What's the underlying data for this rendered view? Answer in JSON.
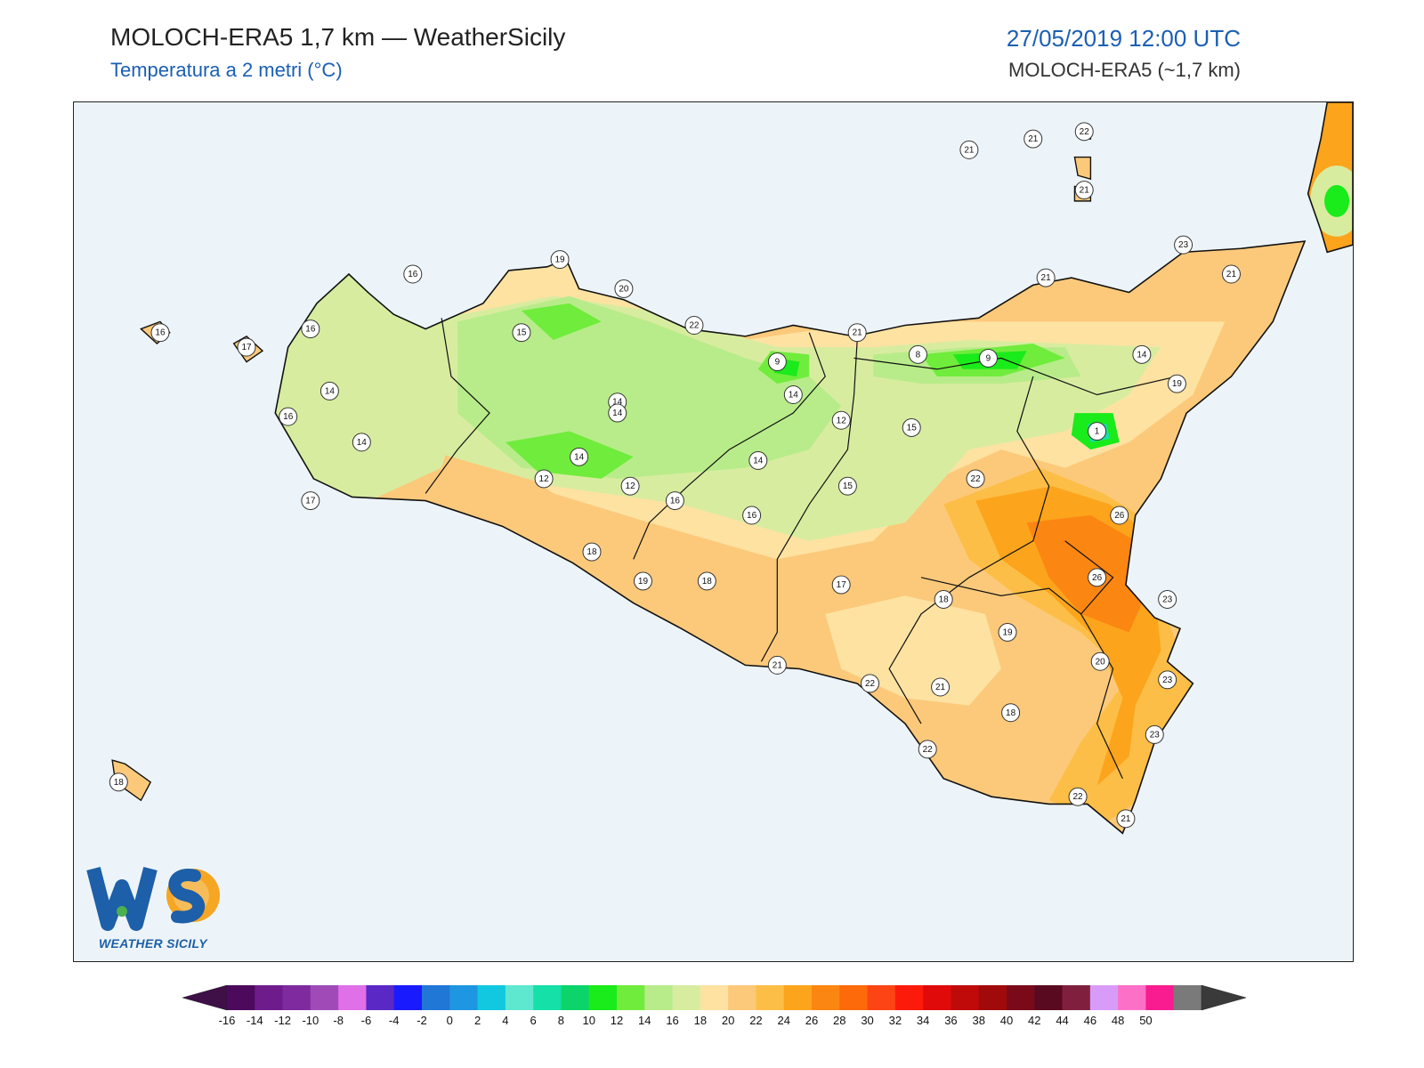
{
  "header": {
    "title": "MOLOCH-ERA5 1,7 km — WeatherSicily",
    "subtitle": "Temperatura a 2 metri (°C)",
    "datetime": "27/05/2019 12:00 UTC",
    "model": "MOLOCH-ERA5 (~1,7 km)"
  },
  "logo": {
    "text": "WEATHER SICILY",
    "mark": "WS"
  },
  "colors": {
    "sea": "#edf4f9",
    "coast": "#111111",
    "colorbar": [
      "#3f0f48",
      "#4d0a5c",
      "#6e1c8c",
      "#7f2a9e",
      "#a04ab8",
      "#e070e8",
      "#5a28c4",
      "#1a1aff",
      "#2177d6",
      "#1f96e2",
      "#12c8e0",
      "#5fe8d0",
      "#15e0a8",
      "#0cd46a",
      "#1aeb1a",
      "#70ec3c",
      "#b8ec8a",
      "#d8eca0",
      "#fde2a2",
      "#fcc97a",
      "#fcbe46",
      "#fca41c",
      "#fc8612",
      "#fc6a0a",
      "#fc4414",
      "#fc1a0a",
      "#e00a0a",
      "#c00a0a",
      "#a00a0a",
      "#7a0a1a",
      "#5a0a20",
      "#80203e",
      "#d89cf8",
      "#fc70c8",
      "#f81c90",
      "#7a7a7a",
      "#3a3a3a"
    ]
  },
  "colorbar": {
    "ticks": [
      "-16",
      "-14",
      "-12",
      "-10",
      "-8",
      "-6",
      "-4",
      "-2",
      "0",
      "2",
      "4",
      "6",
      "8",
      "10",
      "12",
      "14",
      "16",
      "18",
      "20",
      "22",
      "24",
      "26",
      "28",
      "30",
      "32",
      "34",
      "36",
      "38",
      "40",
      "42",
      "44",
      "46",
      "48",
      "50"
    ]
  },
  "stations": [
    {
      "v": "16",
      "lon": 12.07,
      "lat": 38.02
    },
    {
      "v": "17",
      "lon": 12.34,
      "lat": 37.98
    },
    {
      "v": "16",
      "lon": 12.54,
      "lat": 38.03
    },
    {
      "v": "16",
      "lon": 12.86,
      "lat": 38.18
    },
    {
      "v": "15",
      "lon": 13.2,
      "lat": 38.02
    },
    {
      "v": "19",
      "lon": 13.32,
      "lat": 38.22
    },
    {
      "v": "20",
      "lon": 13.52,
      "lat": 38.14
    },
    {
      "v": "22",
      "lon": 13.74,
      "lat": 38.04
    },
    {
      "v": "14",
      "lon": 12.6,
      "lat": 37.86
    },
    {
      "v": "16",
      "lon": 12.47,
      "lat": 37.79
    },
    {
      "v": "14",
      "lon": 12.7,
      "lat": 37.72
    },
    {
      "v": "17",
      "lon": 12.54,
      "lat": 37.56
    },
    {
      "v": "14",
      "lon": 13.5,
      "lat": 37.83
    },
    {
      "v": "12",
      "lon": 13.27,
      "lat": 37.62
    },
    {
      "v": "12",
      "lon": 13.54,
      "lat": 37.6
    },
    {
      "v": "14",
      "lon": 13.38,
      "lat": 37.68
    },
    {
      "v": "14",
      "lon": 13.5,
      "lat": 37.8
    },
    {
      "v": "18",
      "lon": 13.42,
      "lat": 37.42
    },
    {
      "v": "19",
      "lon": 13.58,
      "lat": 37.34
    },
    {
      "v": "18",
      "lon": 13.78,
      "lat": 37.34
    },
    {
      "v": "16",
      "lon": 13.68,
      "lat": 37.56
    },
    {
      "v": "16",
      "lon": 13.92,
      "lat": 37.52
    },
    {
      "v": "14",
      "lon": 14.05,
      "lat": 37.85
    },
    {
      "v": "9",
      "lon": 14.0,
      "lat": 37.94
    },
    {
      "v": "12",
      "lon": 14.2,
      "lat": 37.78
    },
    {
      "v": "14",
      "lon": 13.94,
      "lat": 37.67
    },
    {
      "v": "21",
      "lon": 14.25,
      "lat": 38.02
    },
    {
      "v": "8",
      "lon": 14.44,
      "lat": 37.96
    },
    {
      "v": "9",
      "lon": 14.66,
      "lat": 37.95
    },
    {
      "v": "15",
      "lon": 14.42,
      "lat": 37.76
    },
    {
      "v": "15",
      "lon": 14.22,
      "lat": 37.6
    },
    {
      "v": "17",
      "lon": 14.2,
      "lat": 37.33
    },
    {
      "v": "22",
      "lon": 14.62,
      "lat": 37.62
    },
    {
      "v": "1",
      "lon": 15.0,
      "lat": 37.75
    },
    {
      "v": "14",
      "lon": 15.14,
      "lat": 37.96
    },
    {
      "v": "21",
      "lon": 14.84,
      "lat": 38.17
    },
    {
      "v": "23",
      "lon": 15.27,
      "lat": 38.26
    },
    {
      "v": "21",
      "lon": 15.42,
      "lat": 38.18
    },
    {
      "v": "19",
      "lon": 15.25,
      "lat": 37.88
    },
    {
      "v": "26",
      "lon": 15.07,
      "lat": 37.52
    },
    {
      "v": "26",
      "lon": 15.0,
      "lat": 37.35
    },
    {
      "v": "23",
      "lon": 15.22,
      "lat": 37.29
    },
    {
      "v": "18",
      "lon": 14.52,
      "lat": 37.29
    },
    {
      "v": "19",
      "lon": 14.72,
      "lat": 37.2
    },
    {
      "v": "20",
      "lon": 15.01,
      "lat": 37.12
    },
    {
      "v": "23",
      "lon": 15.22,
      "lat": 37.07
    },
    {
      "v": "23",
      "lon": 15.18,
      "lat": 36.92
    },
    {
      "v": "18",
      "lon": 14.73,
      "lat": 36.98
    },
    {
      "v": "21",
      "lon": 14.0,
      "lat": 37.11
    },
    {
      "v": "22",
      "lon": 14.29,
      "lat": 37.06
    },
    {
      "v": "21",
      "lon": 14.51,
      "lat": 37.05
    },
    {
      "v": "22",
      "lon": 14.47,
      "lat": 36.88
    },
    {
      "v": "22",
      "lon": 14.94,
      "lat": 36.75
    },
    {
      "v": "21",
      "lon": 15.09,
      "lat": 36.69
    },
    {
      "v": "21",
      "lon": 14.8,
      "lat": 38.55
    },
    {
      "v": "22",
      "lon": 14.96,
      "lat": 38.57
    },
    {
      "v": "21",
      "lon": 14.6,
      "lat": 38.52
    },
    {
      "v": "21",
      "lon": 14.96,
      "lat": 38.41
    },
    {
      "v": "18",
      "lon": 11.94,
      "lat": 36.79
    }
  ],
  "regions": [
    {
      "level": 20,
      "pts": [
        [
          13.5,
          38.13
        ],
        [
          14.05,
          38.02
        ],
        [
          14.3,
          38.02
        ],
        [
          14.65,
          38.06
        ],
        [
          15.1,
          38.14
        ],
        [
          15.64,
          38.22
        ],
        [
          15.56,
          38.03
        ],
        [
          15.28,
          37.82
        ],
        [
          15.19,
          37.45
        ],
        [
          15.21,
          37.2
        ],
        [
          15.3,
          37.06
        ],
        [
          15.15,
          36.75
        ],
        [
          15.03,
          36.66
        ],
        [
          14.7,
          36.72
        ],
        [
          14.35,
          36.99
        ],
        [
          14.0,
          37.07
        ],
        [
          13.6,
          37.26
        ],
        [
          13.75,
          37.45
        ],
        [
          14.1,
          37.5
        ],
        [
          14.3,
          37.65
        ],
        [
          14.4,
          37.72
        ],
        [
          14.7,
          37.85
        ],
        [
          14.6,
          38.0
        ],
        [
          14.2,
          38.0
        ],
        [
          13.8,
          37.95
        ],
        [
          13.6,
          38.02
        ]
      ],
      "c": "#fcc97a"
    },
    {
      "level": 22,
      "pts": [
        [
          14.52,
          37.55
        ],
        [
          14.82,
          37.65
        ],
        [
          15.02,
          37.58
        ],
        [
          15.17,
          37.5
        ],
        [
          15.19,
          37.3
        ],
        [
          15.3,
          37.06
        ],
        [
          15.16,
          36.76
        ],
        [
          15.03,
          36.68
        ],
        [
          14.85,
          36.74
        ],
        [
          14.95,
          36.9
        ],
        [
          15.1,
          37.08
        ],
        [
          14.95,
          37.2
        ],
        [
          14.75,
          37.3
        ],
        [
          14.6,
          37.4
        ]
      ],
      "c": "#fcbe46"
    },
    {
      "level": 24,
      "pts": [
        [
          14.62,
          37.56
        ],
        [
          14.86,
          37.6
        ],
        [
          15.04,
          37.55
        ],
        [
          15.16,
          37.47
        ],
        [
          15.18,
          37.32
        ],
        [
          15.2,
          37.15
        ],
        [
          15.12,
          37.0
        ],
        [
          15.1,
          36.86
        ],
        [
          15.0,
          36.78
        ],
        [
          15.08,
          37.02
        ],
        [
          15.0,
          37.18
        ],
        [
          14.86,
          37.3
        ],
        [
          14.7,
          37.4
        ]
      ],
      "c": "#fca41c"
    },
    {
      "level": 26,
      "pts": [
        [
          14.78,
          37.5
        ],
        [
          14.98,
          37.52
        ],
        [
          15.12,
          37.45
        ],
        [
          15.15,
          37.3
        ],
        [
          15.1,
          37.2
        ],
        [
          14.95,
          37.25
        ],
        [
          14.85,
          37.35
        ]
      ],
      "c": "#fc8612"
    },
    {
      "level": 18,
      "pts": [
        [
          14.15,
          37.25
        ],
        [
          14.4,
          37.3
        ],
        [
          14.65,
          37.25
        ],
        [
          14.7,
          37.1
        ],
        [
          14.6,
          37.0
        ],
        [
          14.4,
          37.02
        ],
        [
          14.2,
          37.1
        ]
      ],
      "c": "#fde2a2"
    },
    {
      "level": 18,
      "pts": [
        [
          12.9,
          38.12
        ],
        [
          13.2,
          38.2
        ],
        [
          13.5,
          38.22
        ],
        [
          13.9,
          38.0
        ],
        [
          14.3,
          38.05
        ],
        [
          14.9,
          38.05
        ],
        [
          15.4,
          38.05
        ],
        [
          15.3,
          37.85
        ],
        [
          15.1,
          37.72
        ],
        [
          14.9,
          37.65
        ],
        [
          14.7,
          37.7
        ],
        [
          14.5,
          37.62
        ],
        [
          14.3,
          37.45
        ],
        [
          14.0,
          37.4
        ],
        [
          13.6,
          37.5
        ],
        [
          13.3,
          37.58
        ],
        [
          13.1,
          37.7
        ],
        [
          13.0,
          37.85
        ]
      ],
      "c": "#fde2a2"
    },
    {
      "level": 16,
      "pts": [
        [
          12.43,
          38.02
        ],
        [
          12.5,
          38.15
        ],
        [
          12.66,
          38.2
        ],
        [
          12.74,
          38.12
        ],
        [
          12.9,
          38.05
        ],
        [
          13.3,
          38.12
        ],
        [
          13.6,
          38.08
        ],
        [
          14.0,
          37.98
        ],
        [
          14.3,
          37.98
        ],
        [
          14.6,
          38.0
        ],
        [
          15.2,
          37.98
        ],
        [
          15.1,
          37.85
        ],
        [
          14.9,
          37.75
        ],
        [
          14.6,
          37.7
        ],
        [
          14.4,
          37.5
        ],
        [
          14.1,
          37.45
        ],
        [
          13.7,
          37.55
        ],
        [
          13.3,
          37.6
        ],
        [
          12.9,
          37.7
        ],
        [
          12.6,
          37.65
        ],
        [
          12.45,
          37.8
        ]
      ],
      "c": "#d8eca0"
    },
    {
      "level": 14,
      "pts": [
        [
          13.0,
          38.05
        ],
        [
          13.35,
          38.12
        ],
        [
          13.6,
          38.05
        ],
        [
          13.9,
          37.95
        ],
        [
          14.1,
          37.9
        ],
        [
          14.2,
          37.82
        ],
        [
          14.1,
          37.7
        ],
        [
          13.9,
          37.65
        ],
        [
          13.5,
          37.62
        ],
        [
          13.2,
          37.65
        ],
        [
          13.0,
          37.8
        ]
      ],
      "c": "#b8ec8a"
    },
    {
      "level": 14,
      "pts": [
        [
          14.3,
          37.96
        ],
        [
          14.6,
          37.98
        ],
        [
          14.9,
          37.98
        ],
        [
          14.95,
          37.9
        ],
        [
          14.7,
          37.88
        ],
        [
          14.45,
          37.88
        ],
        [
          14.3,
          37.9
        ]
      ],
      "c": "#b8ec8a"
    },
    {
      "level": 12,
      "pts": [
        [
          13.15,
          37.72
        ],
        [
          13.35,
          37.75
        ],
        [
          13.55,
          37.68
        ],
        [
          13.45,
          37.62
        ],
        [
          13.25,
          37.64
        ]
      ],
      "c": "#70ec3c"
    },
    {
      "level": 12,
      "pts": [
        [
          13.2,
          38.08
        ],
        [
          13.35,
          38.1
        ],
        [
          13.45,
          38.05
        ],
        [
          13.3,
          38.0
        ]
      ],
      "c": "#70ec3c"
    },
    {
      "level": 12,
      "pts": [
        [
          13.98,
          37.97
        ],
        [
          14.1,
          37.96
        ],
        [
          14.1,
          37.9
        ],
        [
          14.0,
          37.88
        ],
        [
          13.94,
          37.92
        ]
      ],
      "c": "#70ec3c"
    },
    {
      "level": 12,
      "pts": [
        [
          14.45,
          37.96
        ],
        [
          14.8,
          37.99
        ],
        [
          14.9,
          37.95
        ],
        [
          14.7,
          37.9
        ],
        [
          14.5,
          37.9
        ]
      ],
      "c": "#70ec3c"
    },
    {
      "level": 10,
      "pts": [
        [
          14.0,
          37.95
        ],
        [
          14.07,
          37.94
        ],
        [
          14.06,
          37.9
        ],
        [
          13.99,
          37.91
        ]
      ],
      "c": "#1aeb1a"
    },
    {
      "level": 10,
      "pts": [
        [
          14.55,
          37.96
        ],
        [
          14.78,
          37.97
        ],
        [
          14.75,
          37.92
        ],
        [
          14.58,
          37.92
        ]
      ],
      "c": "#1aeb1a"
    },
    {
      "level": 10,
      "pts": [
        [
          14.93,
          37.8
        ],
        [
          15.05,
          37.8
        ],
        [
          15.07,
          37.72
        ],
        [
          14.98,
          37.7
        ],
        [
          14.92,
          37.74
        ]
      ],
      "c": "#1aeb1a"
    },
    {
      "level": 6,
      "pts": [
        [
          14.97,
          37.77
        ],
        [
          15.03,
          37.77
        ],
        [
          15.04,
          37.73
        ],
        [
          14.98,
          37.72
        ]
      ],
      "c": "#15e0a8"
    },
    {
      "level": 4,
      "pts": [
        [
          14.99,
          37.76
        ],
        [
          15.02,
          37.76
        ],
        [
          15.02,
          37.74
        ],
        [
          14.99,
          37.74
        ]
      ],
      "c": "#5fe8d0"
    }
  ],
  "map_axes": {
    "lon_range": [
      11.8,
      15.8
    ],
    "lat_range": [
      36.3,
      38.65
    ]
  }
}
